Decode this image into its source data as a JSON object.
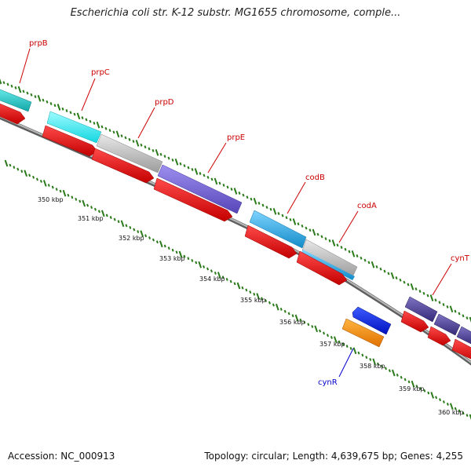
{
  "title": "Escherichia coli str. K-12 substr. MG1655 chromosome, comple...",
  "footer": {
    "accession": "Accession: NC_000913",
    "summary": "Topology: circular; Length: 4,639,675 bp; Genes: 4,255"
  },
  "colors": {
    "backbone": "#8a8a8a",
    "tick": "#2a7a1a",
    "forward_label": "#cc0000",
    "reverse_label": "#0000cc",
    "cds": "#ff0000"
  },
  "kbp_ticks": [
    "350 kbp",
    "351 kbp",
    "352 kbp",
    "353 kbp",
    "354 kbp",
    "355 kbp",
    "356 kbp",
    "357 kbp",
    "358 kbp",
    "359 kbp",
    "360 kbp"
  ],
  "genes": [
    {
      "name": "prpB",
      "strand": "forward",
      "color": "#1fbfbf"
    },
    {
      "name": "prpC",
      "strand": "forward",
      "color": "#22e8f0"
    },
    {
      "name": "prpD",
      "strand": "forward",
      "color": "#bdbdbd"
    },
    {
      "name": "prpE",
      "strand": "forward",
      "color": "#6a5acd"
    },
    {
      "name": "codB",
      "strand": "forward",
      "color": "#1ea8e6"
    },
    {
      "name": "codA",
      "strand": "forward",
      "color": "#1ea8e6"
    },
    {
      "name": "cynT",
      "strand": "forward",
      "color": "#4b3f8f"
    },
    {
      "name": "cynR",
      "strand": "reverse",
      "color": "#ff8c00"
    }
  ]
}
